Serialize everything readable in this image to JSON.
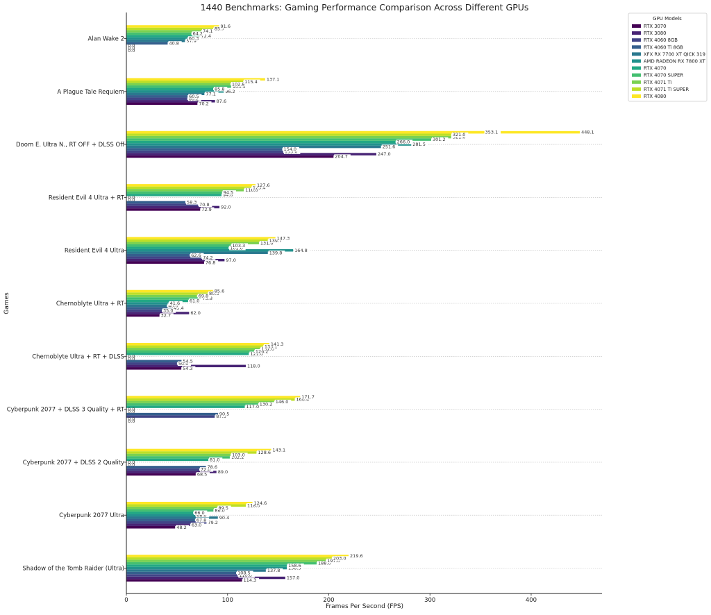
{
  "chart_data": {
    "type": "bar",
    "orientation": "horizontal",
    "title": "1440 Benchmarks: Gaming Performance Comparison Across Different GPUs",
    "xlabel": "Frames Per Second (FPS)",
    "ylabel": "Games",
    "xlim": [
      0,
      470
    ],
    "xticks": [
      0,
      100,
      200,
      300,
      400
    ],
    "grid": "horizontal dotted lines at categories",
    "legend": {
      "title": "GPU Models",
      "placement": "upper right, outside plot"
    },
    "categories": [
      "Alan Wake 2",
      "A Plague Tale Requiem",
      "Doom E. Ultra N., RT OFF + DLSS Off",
      "Resident Evil 4 Ultra + RT",
      "Resident Evil 4 Ultra",
      "Chernoblyte Ultra + RT",
      "Chernoblyte Ultra + RT + DLSS",
      "Cyberpunk 2077 + DLSS 3 Quality + RT",
      "Cyberpunk 2077 + DLSS 2 Quality",
      "Cyberpunk 2077 Ultra",
      "Shadow of the Tomb Raider (Ultra)"
    ],
    "series": [
      {
        "name": "RTX 3070",
        "color": "#440154",
        "values": [
          0.0,
          70.2,
          204.7,
          72.9,
          76.8,
          32.7,
          54.3,
          0.0,
          68.5,
          48.2,
          114.3
        ]
      },
      {
        "name": "RTX 3080",
        "color": "#482475",
        "values": [
          0.0,
          87.6,
          247.0,
          92.0,
          97.0,
          62.0,
          118.0,
          0.0,
          89.0,
          63.0,
          157.0
        ]
      },
      {
        "name": "RTX 4060 8GB",
        "color": "#414487",
        "values": [
          0.0,
          60.2,
          155.0,
          70.8,
          74.2,
          35.0,
          50.0,
          87.3,
          72.0,
          79.2,
          110.0
        ]
      },
      {
        "name": "RTX 4060 Ti 8GB",
        "color": "#355f8d",
        "values": [
          40.8,
          60.5,
          154.0,
          58.3,
          62.6,
          45.4,
          54.5,
          90.5,
          78.6,
          67.8,
          108.5
        ]
      },
      {
        "name": "XFX RX 7700 XT QICK 319",
        "color": "#2a788e",
        "values": [
          57.9,
          77.1,
          251.6,
          0.0,
          139.8,
          40.0,
          0.0,
          0.0,
          0.0,
          90.4,
          137.8
        ]
      },
      {
        "name": "AMD RADEON RX 7800 XT",
        "color": "#21918c",
        "values": [
          60.3,
          96.2,
          281.5,
          0.0,
          164.8,
          41.6,
          0.0,
          0.0,
          0.0,
          68.0,
          158.5
        ]
      },
      {
        "name": "RTX 4070",
        "color": "#22a884",
        "values": [
          72.4,
          85.8,
          266.0,
          94.0,
          101.0,
          61.0,
          121.0,
          117.0,
          81.0,
          66.0,
          158.6
        ]
      },
      {
        "name": "RTX 4070 SUPER",
        "color": "#44bf70",
        "values": [
          64.2,
          103.5,
          301.2,
          94.5,
          103.3,
          73.8,
          126.2,
          130.2,
          102.2,
          86.0,
          188.0
        ]
      },
      {
        "name": "RTX 4071 Ti",
        "color": "#7ad151",
        "values": [
          74.1,
          102.8,
          321.0,
          116.0,
          131.0,
          69.8,
          132.0,
          146.0,
          103.0,
          89.5,
          197.0
        ]
      },
      {
        "name": "RTX 4071 Ti SUPER",
        "color": "#bddf26",
        "values": [
          85.7,
          115.4,
          321.0,
          123.4,
          139.7,
          80.3,
          135.1,
          166.4,
          128.6,
          118.0,
          203.0
        ]
      },
      {
        "name": "RTX 4080",
        "color": "#fde725",
        "values": [
          91.6,
          137.1,
          353.1,
          127.6,
          147.3,
          85.6,
          141.3,
          171.7,
          143.1,
          124.6,
          219.6
        ]
      },
      {
        "name": "",
        "color": "#fde725",
        "values": [
          0,
          0,
          448.1,
          0,
          0,
          0,
          0,
          0,
          0,
          0,
          0
        ]
      }
    ]
  }
}
